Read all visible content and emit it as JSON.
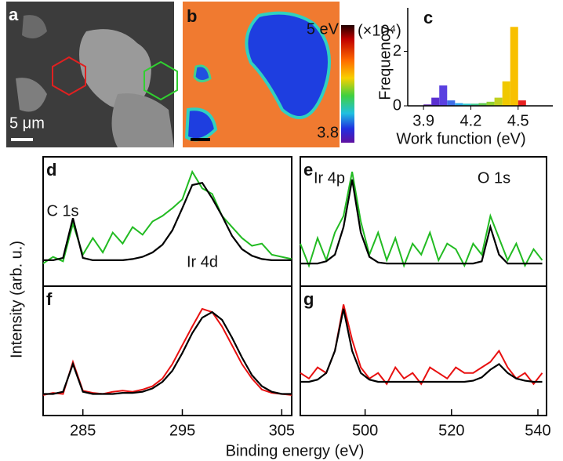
{
  "figure": {
    "panel_a": {
      "label": "a",
      "scale_bar": "5 μm"
    },
    "panel_b": {
      "label": "b",
      "colorbar_max": "5 eV",
      "colorbar_min": "3.8"
    },
    "ylabel": "Intensity (arb. u.)",
    "xlabel": "Binding energy (eV)"
  },
  "chart_data": [
    {
      "type": "histogram",
      "label": "c",
      "ylabel": "Frequency",
      "y_unit": "(×10⁴)",
      "xlabel": "Work function (eV)",
      "bins": [
        3.9,
        3.95,
        4.0,
        4.05,
        4.1,
        4.15,
        4.2,
        4.25,
        4.3,
        4.35,
        4.4,
        4.45,
        4.5,
        4.55
      ],
      "values": [
        0.05,
        0.3,
        0.75,
        0.2,
        0.1,
        0.08,
        0.08,
        0.1,
        0.15,
        0.3,
        0.9,
        2.9,
        0.2
      ],
      "colors": [
        "#5a1fa8",
        "#5a2fd0",
        "#5a40e0",
        "#3f6ee8",
        "#30a8e8",
        "#30c8c8",
        "#40c890",
        "#60c850",
        "#90d030",
        "#c0d020",
        "#f0c800",
        "#f8c000",
        "#e82020"
      ],
      "xlim": [
        3.8,
        4.72
      ],
      "ylim": [
        0,
        3.6
      ],
      "xticks": [
        3.9,
        4.2,
        4.5
      ],
      "yticks": [
        0,
        2
      ]
    },
    {
      "type": "line",
      "label": "d",
      "annotations": [
        "C 1s",
        "Ir 4d"
      ],
      "xlim": [
        281,
        306
      ],
      "ylim": [
        0,
        1
      ],
      "x": [
        281,
        282,
        283,
        284,
        285,
        286,
        287,
        288,
        289,
        290,
        291,
        292,
        293,
        294,
        295,
        296,
        297,
        298,
        299,
        300,
        301,
        302,
        303,
        304,
        305,
        306
      ],
      "series": [
        {
          "color": "#22bb22",
          "values": [
            0.12,
            0.18,
            0.14,
            0.48,
            0.2,
            0.35,
            0.22,
            0.4,
            0.3,
            0.45,
            0.38,
            0.5,
            0.55,
            0.62,
            0.7,
            0.95,
            0.8,
            0.75,
            0.55,
            0.45,
            0.35,
            0.28,
            0.3,
            0.2,
            0.18,
            0.16
          ]
        },
        {
          "color": "#000000",
          "values": [
            0.15,
            0.15,
            0.17,
            0.53,
            0.17,
            0.15,
            0.15,
            0.15,
            0.15,
            0.16,
            0.18,
            0.22,
            0.29,
            0.42,
            0.62,
            0.83,
            0.85,
            0.71,
            0.55,
            0.37,
            0.25,
            0.19,
            0.16,
            0.15,
            0.15,
            0.15
          ]
        }
      ]
    },
    {
      "type": "line",
      "label": "e",
      "annotations": [
        "Ir 4p",
        "O 1s"
      ],
      "xlim": [
        485,
        542
      ],
      "ylim": [
        0,
        1
      ],
      "x": [
        485,
        487,
        489,
        491,
        493,
        495,
        497,
        499,
        501,
        503,
        505,
        507,
        509,
        511,
        513,
        515,
        517,
        519,
        521,
        523,
        525,
        527,
        529,
        531,
        533,
        535,
        537,
        539,
        541
      ],
      "series": [
        {
          "color": "#22bb22",
          "values": [
            0.3,
            0.1,
            0.35,
            0.15,
            0.4,
            0.55,
            0.95,
            0.5,
            0.2,
            0.4,
            0.15,
            0.35,
            0.1,
            0.3,
            0.2,
            0.4,
            0.15,
            0.3,
            0.25,
            0.1,
            0.3,
            0.2,
            0.55,
            0.35,
            0.15,
            0.3,
            0.1,
            0.25,
            0.15
          ]
        },
        {
          "color": "#000000",
          "values": [
            0.12,
            0.12,
            0.12,
            0.14,
            0.2,
            0.45,
            0.88,
            0.4,
            0.18,
            0.13,
            0.12,
            0.12,
            0.12,
            0.12,
            0.12,
            0.12,
            0.12,
            0.12,
            0.12,
            0.12,
            0.12,
            0.14,
            0.45,
            0.2,
            0.12,
            0.12,
            0.12,
            0.12,
            0.12
          ]
        }
      ]
    },
    {
      "type": "line",
      "label": "f",
      "xlim": [
        281,
        306
      ],
      "ylim": [
        0,
        1
      ],
      "xticks": [
        285,
        295,
        305
      ],
      "x": [
        281,
        282,
        283,
        284,
        285,
        286,
        287,
        288,
        289,
        290,
        291,
        292,
        293,
        294,
        295,
        296,
        297,
        298,
        299,
        300,
        301,
        302,
        303,
        304,
        305,
        306
      ],
      "series": [
        {
          "color": "#e81010",
          "values": [
            0.1,
            0.12,
            0.11,
            0.4,
            0.14,
            0.12,
            0.11,
            0.13,
            0.14,
            0.13,
            0.15,
            0.18,
            0.25,
            0.38,
            0.55,
            0.72,
            0.88,
            0.85,
            0.72,
            0.55,
            0.38,
            0.25,
            0.15,
            0.12,
            0.11,
            0.1
          ]
        },
        {
          "color": "#000000",
          "values": [
            0.11,
            0.11,
            0.13,
            0.38,
            0.13,
            0.11,
            0.11,
            0.11,
            0.12,
            0.12,
            0.13,
            0.16,
            0.22,
            0.32,
            0.48,
            0.66,
            0.8,
            0.85,
            0.78,
            0.62,
            0.44,
            0.28,
            0.18,
            0.13,
            0.11,
            0.11
          ]
        }
      ]
    },
    {
      "type": "line",
      "label": "g",
      "xlim": [
        485,
        542
      ],
      "ylim": [
        0,
        1
      ],
      "xticks": [
        500,
        520,
        540
      ],
      "x": [
        485,
        487,
        489,
        491,
        493,
        495,
        497,
        499,
        501,
        503,
        505,
        507,
        509,
        511,
        513,
        515,
        517,
        519,
        521,
        523,
        525,
        527,
        529,
        531,
        533,
        535,
        537,
        539,
        541
      ],
      "series": [
        {
          "color": "#e81010",
          "values": [
            0.3,
            0.25,
            0.35,
            0.3,
            0.5,
            0.92,
            0.6,
            0.35,
            0.25,
            0.3,
            0.2,
            0.35,
            0.25,
            0.3,
            0.2,
            0.35,
            0.3,
            0.25,
            0.35,
            0.3,
            0.3,
            0.35,
            0.4,
            0.5,
            0.35,
            0.25,
            0.3,
            0.2,
            0.3
          ]
        },
        {
          "color": "#000000",
          "values": [
            0.22,
            0.22,
            0.24,
            0.3,
            0.5,
            0.88,
            0.5,
            0.3,
            0.24,
            0.22,
            0.22,
            0.22,
            0.22,
            0.22,
            0.22,
            0.22,
            0.22,
            0.22,
            0.22,
            0.22,
            0.23,
            0.26,
            0.33,
            0.38,
            0.3,
            0.25,
            0.23,
            0.22,
            0.22
          ]
        }
      ]
    }
  ]
}
